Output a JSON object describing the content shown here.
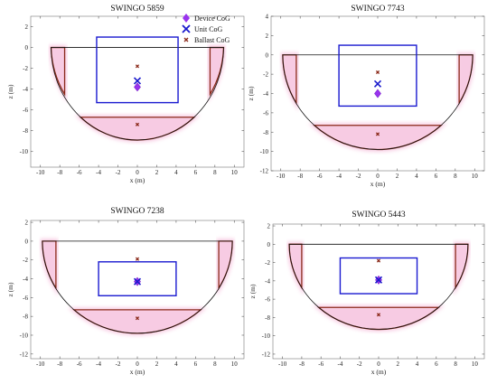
{
  "figure": {
    "legend": {
      "placement": "top-right of first panel",
      "items": [
        {
          "label": "Device CoG",
          "marker": "diamond",
          "color": "#9933ee"
        },
        {
          "label": "Unit CoG",
          "marker": "x",
          "color": "#1a1acc"
        },
        {
          "label": "Ballast CoG",
          "marker": "small-x",
          "color": "#8b2a1a"
        }
      ]
    },
    "colors": {
      "hull": "#111111",
      "ballast": "#8b2a1a",
      "ballast_glow": "#f7c6e0",
      "device_box": "#1a1ad0",
      "device_cog": "#9933ee",
      "unit_cog": "#1a1acc",
      "ballast_cog": "#8b2a1a"
    }
  },
  "chart_data": [
    {
      "type": "scatter",
      "title": "SWINGO 5859",
      "xlabel": "x (m)",
      "ylabel": "z (m)",
      "xlim": [
        -11,
        11
      ],
      "ylim": [
        -11.5,
        3
      ],
      "xticks": [
        -10,
        -8,
        -6,
        -4,
        -2,
        0,
        2,
        4,
        6,
        8,
        10
      ],
      "yticks": [
        2,
        0,
        -2,
        -4,
        -6,
        -8,
        -10
      ],
      "grid": false,
      "hull": {
        "half_width": 8.9,
        "top": 0,
        "depth": 8.9
      },
      "device_box": {
        "x": [
          -4.2,
          4.2
        ],
        "z": [
          -5.3,
          1.0
        ]
      },
      "ballast": {
        "side_x": [
          8.9,
          7.5
        ],
        "side_bottom": -4.5,
        "bottom_z": -6.7
      },
      "device_cog": [
        0,
        -3.8
      ],
      "unit_cog": [
        0,
        -3.2
      ],
      "ballast_cogs": [
        [
          0,
          -1.8
        ],
        [
          0,
          -7.4
        ]
      ]
    },
    {
      "type": "scatter",
      "title": "SWINGO 7743",
      "xlabel": "x (m)",
      "ylabel": "z (m)",
      "xlim": [
        -11,
        11
      ],
      "ylim": [
        -12,
        4
      ],
      "xticks": [
        -10,
        -8,
        -6,
        -4,
        -2,
        0,
        2,
        4,
        6,
        8,
        10
      ],
      "yticks": [
        4,
        2,
        0,
        -2,
        -4,
        -6,
        -8,
        -10,
        -12
      ],
      "grid": false,
      "hull": {
        "half_width": 9.8,
        "top": 0,
        "depth": 9.8
      },
      "device_box": {
        "x": [
          -4,
          4
        ],
        "z": [
          -5.3,
          1.0
        ]
      },
      "ballast": {
        "side_x": [
          9.8,
          8.4
        ],
        "side_bottom": -5.0,
        "bottom_z": -7.3
      },
      "device_cog": [
        0,
        -4.0
      ],
      "unit_cog": [
        0,
        -3.0
      ],
      "ballast_cogs": [
        [
          0,
          -1.8
        ],
        [
          0,
          -8.2
        ]
      ]
    },
    {
      "type": "scatter",
      "title": "SWINGO 7238",
      "xlabel": "x (m)",
      "ylabel": "z (m)",
      "xlim": [
        -11,
        11
      ],
      "ylim": [
        -12.5,
        2.2
      ],
      "xticks": [
        -10,
        -8,
        -6,
        -4,
        -2,
        0,
        2,
        4,
        6,
        8,
        10
      ],
      "yticks": [
        2,
        0,
        -2,
        -4,
        -6,
        -8,
        -10,
        -12
      ],
      "grid": false,
      "hull": {
        "half_width": 9.8,
        "top": 0,
        "depth": 9.8
      },
      "device_box": {
        "x": [
          -4,
          4
        ],
        "z": [
          -5.8,
          -2.2
        ]
      },
      "ballast": {
        "side_x": [
          9.8,
          8.4
        ],
        "side_bottom": -5.0,
        "bottom_z": -7.3
      },
      "device_cog": [
        0,
        -4.3
      ],
      "unit_cog": [
        0,
        -4.3
      ],
      "ballast_cogs": [
        [
          0,
          -1.9
        ],
        [
          0,
          -8.2
        ]
      ]
    },
    {
      "type": "scatter",
      "title": "SWINGO 5443",
      "xlabel": "x (m)",
      "ylabel": "z (m)",
      "xlim": [
        -11,
        11
      ],
      "ylim": [
        -12.5,
        2.2
      ],
      "xticks": [
        -10,
        -8,
        -6,
        -4,
        -2,
        0,
        2,
        4,
        6,
        8,
        10
      ],
      "yticks": [
        2,
        0,
        -2,
        -4,
        -6,
        -8,
        -10,
        -12
      ],
      "grid": false,
      "hull": {
        "half_width": 9.3,
        "top": 0,
        "depth": 9.3
      },
      "device_box": {
        "x": [
          -4,
          4
        ],
        "z": [
          -5.4,
          -1.5
        ]
      },
      "ballast": {
        "side_x": [
          9.3,
          8.0
        ],
        "side_bottom": -4.8,
        "bottom_z": -6.9
      },
      "device_cog": [
        0,
        -3.9
      ],
      "unit_cog": [
        0,
        -3.9
      ],
      "ballast_cogs": [
        [
          0,
          -1.8
        ],
        [
          0,
          -7.7
        ]
      ]
    }
  ]
}
